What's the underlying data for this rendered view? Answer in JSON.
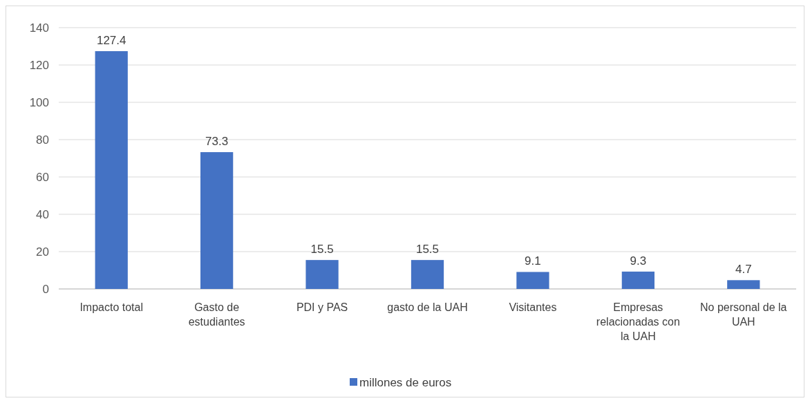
{
  "chart_data": {
    "type": "bar",
    "categories": [
      "Impacto total",
      "Gasto de estudiantes",
      "PDI y PAS",
      "gasto de la UAH",
      "Visitantes",
      "Empresas relacionadas con la UAH",
      "No personal de la UAH"
    ],
    "series": [
      {
        "name": "millones de euros",
        "color": "#4472c4",
        "values": [
          127.4,
          73.3,
          15.5,
          15.5,
          9.1,
          9.3,
          4.7
        ]
      }
    ],
    "ylim": [
      0,
      140
    ],
    "yticks": [
      0,
      20,
      40,
      60,
      80,
      100,
      120,
      140
    ],
    "grid": "y",
    "legend": "bottom",
    "data_labels": true
  }
}
